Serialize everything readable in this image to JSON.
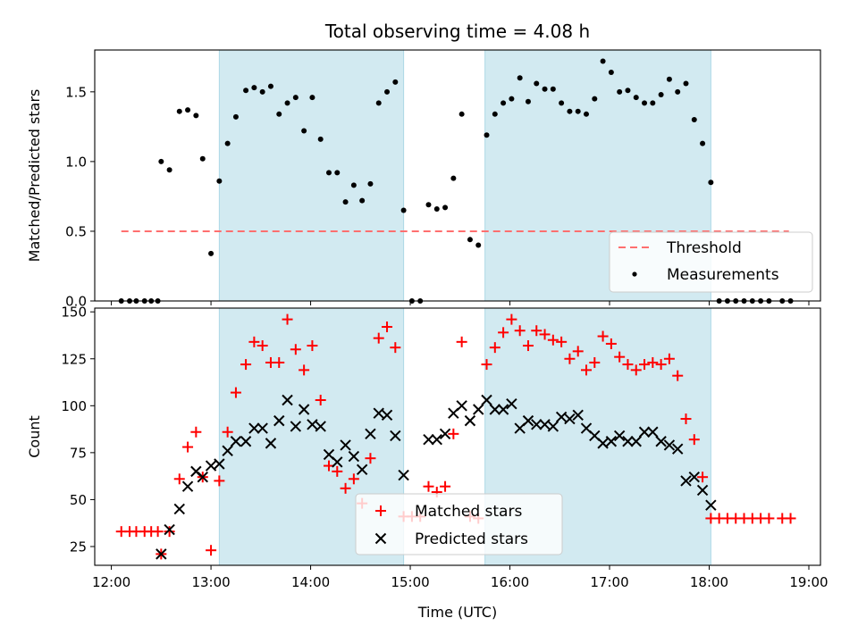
{
  "figure": {
    "title": "Total observing time = 4.08 h",
    "xlabel": "Time (UTC)",
    "x_tick_labels": [
      "12:00",
      "13:00",
      "14:00",
      "15:00",
      "16:00",
      "17:00",
      "18:00",
      "19:00"
    ],
    "shading_color": "#add8e6"
  },
  "chart_data": [
    {
      "type": "scatter",
      "panel": "top",
      "title": "Total observing time = 4.08 h",
      "ylabel": "Matched/Predicted stars",
      "xlim": [
        "11:50",
        "19:07"
      ],
      "ylim": [
        0,
        1.8
      ],
      "y_ticks": [
        0.0,
        0.5,
        1.0,
        1.5
      ],
      "y_tick_labels": [
        "0.0",
        "0.5",
        "1.0",
        "1.5"
      ],
      "shaded_intervals": [
        [
          "13:05",
          "14:56"
        ],
        [
          "15:45",
          "18:01"
        ]
      ],
      "legend": {
        "position": "lower right",
        "entries": [
          {
            "label": "Threshold",
            "style": "dashed-line",
            "color": "#ff6f6f"
          },
          {
            "label": "Measurements",
            "style": "dot",
            "color": "#000000"
          }
        ]
      },
      "threshold": {
        "name": "Threshold",
        "value": 0.5,
        "x_range": [
          "12:06",
          "18:48"
        ],
        "color": "#ff6f6f"
      },
      "series": [
        {
          "name": "Measurements",
          "color": "#000000",
          "points": [
            [
              "12:06",
              0.0
            ],
            [
              "12:11",
              0.0
            ],
            [
              "12:15",
              0.0
            ],
            [
              "12:20",
              0.0
            ],
            [
              "12:24",
              0.0
            ],
            [
              "12:28",
              0.0
            ],
            [
              "12:30",
              1.0
            ],
            [
              "12:35",
              0.94
            ],
            [
              "12:41",
              1.36
            ],
            [
              "12:46",
              1.37
            ],
            [
              "12:51",
              1.33
            ],
            [
              "12:55",
              1.02
            ],
            [
              "13:00",
              0.34
            ],
            [
              "13:05",
              0.86
            ],
            [
              "13:10",
              1.13
            ],
            [
              "13:15",
              1.32
            ],
            [
              "13:21",
              1.51
            ],
            [
              "13:26",
              1.53
            ],
            [
              "13:31",
              1.5
            ],
            [
              "13:36",
              1.54
            ],
            [
              "13:41",
              1.34
            ],
            [
              "13:46",
              1.42
            ],
            [
              "13:51",
              1.46
            ],
            [
              "13:56",
              1.22
            ],
            [
              "14:01",
              1.46
            ],
            [
              "14:06",
              1.16
            ],
            [
              "14:11",
              0.92
            ],
            [
              "14:16",
              0.92
            ],
            [
              "14:21",
              0.71
            ],
            [
              "14:26",
              0.83
            ],
            [
              "14:31",
              0.72
            ],
            [
              "14:36",
              0.84
            ],
            [
              "14:41",
              1.42
            ],
            [
              "14:46",
              1.5
            ],
            [
              "14:51",
              1.57
            ],
            [
              "14:56",
              0.65
            ],
            [
              "15:01",
              0.0
            ],
            [
              "15:06",
              0.0
            ],
            [
              "15:11",
              0.69
            ],
            [
              "15:16",
              0.66
            ],
            [
              "15:21",
              0.67
            ],
            [
              "15:26",
              0.88
            ],
            [
              "15:31",
              1.34
            ],
            [
              "15:36",
              0.44
            ],
            [
              "15:41",
              0.4
            ],
            [
              "15:46",
              1.19
            ],
            [
              "15:51",
              1.34
            ],
            [
              "15:56",
              1.42
            ],
            [
              "16:01",
              1.45
            ],
            [
              "16:06",
              1.6
            ],
            [
              "16:11",
              1.43
            ],
            [
              "16:16",
              1.56
            ],
            [
              "16:21",
              1.52
            ],
            [
              "16:26",
              1.52
            ],
            [
              "16:31",
              1.42
            ],
            [
              "16:36",
              1.36
            ],
            [
              "16:41",
              1.36
            ],
            [
              "16:46",
              1.34
            ],
            [
              "16:51",
              1.45
            ],
            [
              "16:56",
              1.72
            ],
            [
              "17:01",
              1.64
            ],
            [
              "17:06",
              1.5
            ],
            [
              "17:11",
              1.51
            ],
            [
              "17:16",
              1.46
            ],
            [
              "17:21",
              1.42
            ],
            [
              "17:26",
              1.42
            ],
            [
              "17:31",
              1.48
            ],
            [
              "17:36",
              1.59
            ],
            [
              "17:41",
              1.5
            ],
            [
              "17:46",
              1.56
            ],
            [
              "17:51",
              1.3
            ],
            [
              "17:56",
              1.13
            ],
            [
              "18:01",
              0.85
            ],
            [
              "18:06",
              0.0
            ],
            [
              "18:11",
              0.0
            ],
            [
              "18:16",
              0.0
            ],
            [
              "18:21",
              0.0
            ],
            [
              "18:26",
              0.0
            ],
            [
              "18:31",
              0.0
            ],
            [
              "18:36",
              0.0
            ],
            [
              "18:44",
              0.0
            ],
            [
              "18:49",
              0.0
            ]
          ]
        }
      ]
    },
    {
      "type": "scatter",
      "panel": "bottom",
      "xlabel": "Time (UTC)",
      "ylabel": "Count",
      "xlim": [
        "11:50",
        "19:07"
      ],
      "ylim": [
        15,
        152
      ],
      "y_ticks": [
        25,
        50,
        75,
        100,
        125,
        150
      ],
      "y_tick_labels": [
        "25",
        "50",
        "75",
        "100",
        "125",
        "150"
      ],
      "x_tick_labels": [
        "12:00",
        "13:00",
        "14:00",
        "15:00",
        "16:00",
        "17:00",
        "18:00",
        "19:00"
      ],
      "shaded_intervals": [
        [
          "13:05",
          "14:56"
        ],
        [
          "15:45",
          "18:01"
        ]
      ],
      "legend": {
        "position": "lower center",
        "entries": [
          {
            "label": "Matched stars",
            "marker": "+",
            "color": "#ff0000"
          },
          {
            "label": "Predicted stars",
            "marker": "x",
            "color": "#000000"
          }
        ]
      },
      "series": [
        {
          "name": "Matched stars",
          "marker": "+",
          "color": "#ff0000",
          "points": [
            [
              "12:06",
              33
            ],
            [
              "12:11",
              33
            ],
            [
              "12:15",
              33
            ],
            [
              "12:20",
              33
            ],
            [
              "12:24",
              33
            ],
            [
              "12:28",
              33
            ],
            [
              "12:30",
              21
            ],
            [
              "12:35",
              33
            ],
            [
              "12:41",
              61
            ],
            [
              "12:46",
              78
            ],
            [
              "12:51",
              86
            ],
            [
              "12:55",
              62
            ],
            [
              "13:00",
              23
            ],
            [
              "13:05",
              60
            ],
            [
              "13:10",
              86
            ],
            [
              "13:15",
              107
            ],
            [
              "13:21",
              122
            ],
            [
              "13:26",
              134
            ],
            [
              "13:31",
              132
            ],
            [
              "13:36",
              123
            ],
            [
              "13:41",
              123
            ],
            [
              "13:46",
              146
            ],
            [
              "13:51",
              130
            ],
            [
              "13:56",
              119
            ],
            [
              "14:01",
              132
            ],
            [
              "14:06",
              103
            ],
            [
              "14:11",
              68
            ],
            [
              "14:16",
              65
            ],
            [
              "14:21",
              56
            ],
            [
              "14:26",
              61
            ],
            [
              "14:31",
              48
            ],
            [
              "14:36",
              72
            ],
            [
              "14:41",
              136
            ],
            [
              "14:46",
              142
            ],
            [
              "14:51",
              131
            ],
            [
              "14:56",
              41
            ],
            [
              "15:01",
              41
            ],
            [
              "15:06",
              41
            ],
            [
              "15:11",
              57
            ],
            [
              "15:16",
              54
            ],
            [
              "15:21",
              57
            ],
            [
              "15:26",
              85
            ],
            [
              "15:31",
              134
            ],
            [
              "15:36",
              41
            ],
            [
              "15:41",
              40
            ],
            [
              "15:46",
              122
            ],
            [
              "15:51",
              131
            ],
            [
              "15:56",
              139
            ],
            [
              "16:01",
              146
            ],
            [
              "16:06",
              140
            ],
            [
              "16:11",
              132
            ],
            [
              "16:16",
              140
            ],
            [
              "16:21",
              138
            ],
            [
              "16:26",
              135
            ],
            [
              "16:31",
              134
            ],
            [
              "16:36",
              125
            ],
            [
              "16:41",
              129
            ],
            [
              "16:46",
              119
            ],
            [
              "16:51",
              123
            ],
            [
              "16:56",
              137
            ],
            [
              "17:01",
              133
            ],
            [
              "17:06",
              126
            ],
            [
              "17:11",
              122
            ],
            [
              "17:16",
              119
            ],
            [
              "17:21",
              122
            ],
            [
              "17:26",
              123
            ],
            [
              "17:31",
              122
            ],
            [
              "17:36",
              125
            ],
            [
              "17:41",
              116
            ],
            [
              "17:46",
              93
            ],
            [
              "17:51",
              82
            ],
            [
              "17:56",
              62
            ],
            [
              "18:01",
              40
            ],
            [
              "18:06",
              40
            ],
            [
              "18:11",
              40
            ],
            [
              "18:16",
              40
            ],
            [
              "18:21",
              40
            ],
            [
              "18:26",
              40
            ],
            [
              "18:31",
              40
            ],
            [
              "18:36",
              40
            ],
            [
              "18:44",
              40
            ],
            [
              "18:49",
              40
            ]
          ]
        },
        {
          "name": "Predicted stars",
          "marker": "x",
          "color": "#000000",
          "points": [
            [
              "12:30",
              21
            ],
            [
              "12:35",
              34
            ],
            [
              "12:41",
              45
            ],
            [
              "12:46",
              57
            ],
            [
              "12:51",
              65
            ],
            [
              "12:55",
              62
            ],
            [
              "13:00",
              68
            ],
            [
              "13:05",
              69
            ],
            [
              "13:10",
              76
            ],
            [
              "13:15",
              81
            ],
            [
              "13:21",
              81
            ],
            [
              "13:26",
              88
            ],
            [
              "13:31",
              88
            ],
            [
              "13:36",
              80
            ],
            [
              "13:41",
              92
            ],
            [
              "13:46",
              103
            ],
            [
              "13:51",
              89
            ],
            [
              "13:56",
              98
            ],
            [
              "14:01",
              90
            ],
            [
              "14:06",
              89
            ],
            [
              "14:11",
              74
            ],
            [
              "14:16",
              70
            ],
            [
              "14:21",
              79
            ],
            [
              "14:26",
              73
            ],
            [
              "14:31",
              66
            ],
            [
              "14:36",
              85
            ],
            [
              "14:41",
              96
            ],
            [
              "14:46",
              95
            ],
            [
              "14:51",
              84
            ],
            [
              "14:56",
              63
            ],
            [
              "15:11",
              82
            ],
            [
              "15:16",
              82
            ],
            [
              "15:21",
              85
            ],
            [
              "15:26",
              96
            ],
            [
              "15:31",
              100
            ],
            [
              "15:36",
              92
            ],
            [
              "15:41",
              98
            ],
            [
              "15:46",
              103
            ],
            [
              "15:51",
              98
            ],
            [
              "15:56",
              98
            ],
            [
              "16:01",
              101
            ],
            [
              "16:06",
              88
            ],
            [
              "16:11",
              92
            ],
            [
              "16:16",
              90
            ],
            [
              "16:21",
              90
            ],
            [
              "16:26",
              89
            ],
            [
              "16:31",
              94
            ],
            [
              "16:36",
              93
            ],
            [
              "16:41",
              95
            ],
            [
              "16:46",
              88
            ],
            [
              "16:51",
              84
            ],
            [
              "16:56",
              80
            ],
            [
              "17:01",
              81
            ],
            [
              "17:06",
              84
            ],
            [
              "17:11",
              81
            ],
            [
              "17:16",
              81
            ],
            [
              "17:21",
              86
            ],
            [
              "17:26",
              86
            ],
            [
              "17:31",
              81
            ],
            [
              "17:36",
              79
            ],
            [
              "17:41",
              77
            ],
            [
              "17:46",
              60
            ],
            [
              "17:51",
              62
            ],
            [
              "17:56",
              55
            ],
            [
              "18:01",
              47
            ]
          ]
        }
      ]
    }
  ]
}
